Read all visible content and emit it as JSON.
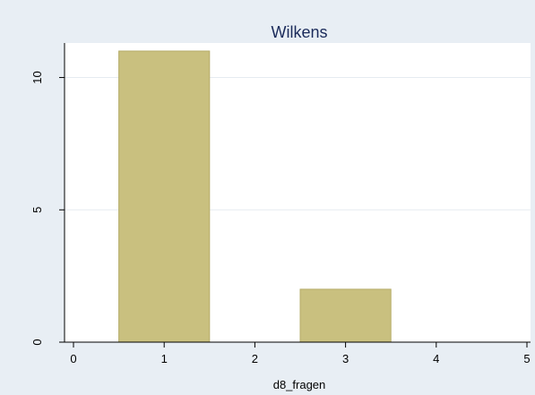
{
  "chart_data": {
    "type": "bar",
    "title": "Wilkens",
    "xlabel": "d8_fragen",
    "ylabel": "",
    "xlim": [
      0,
      5
    ],
    "ylim": [
      0,
      11
    ],
    "x_ticks": [
      "0",
      "1",
      "2",
      "3",
      "4",
      "5"
    ],
    "y_ticks": [
      "0",
      "5",
      "10"
    ],
    "bar_width": 1,
    "bars": [
      {
        "x": 1,
        "value": 11
      },
      {
        "x": 3,
        "value": 2
      }
    ],
    "grid": true,
    "legend": "none"
  },
  "colors": {
    "outer_background": "#e8eef4",
    "plot_background": "#ffffff",
    "bar_fill": "#c9c07f",
    "bar_stroke": "#b6ad6a",
    "grid": "#e6ebf1",
    "axis": "#000000",
    "title": "#1a2a5a"
  }
}
